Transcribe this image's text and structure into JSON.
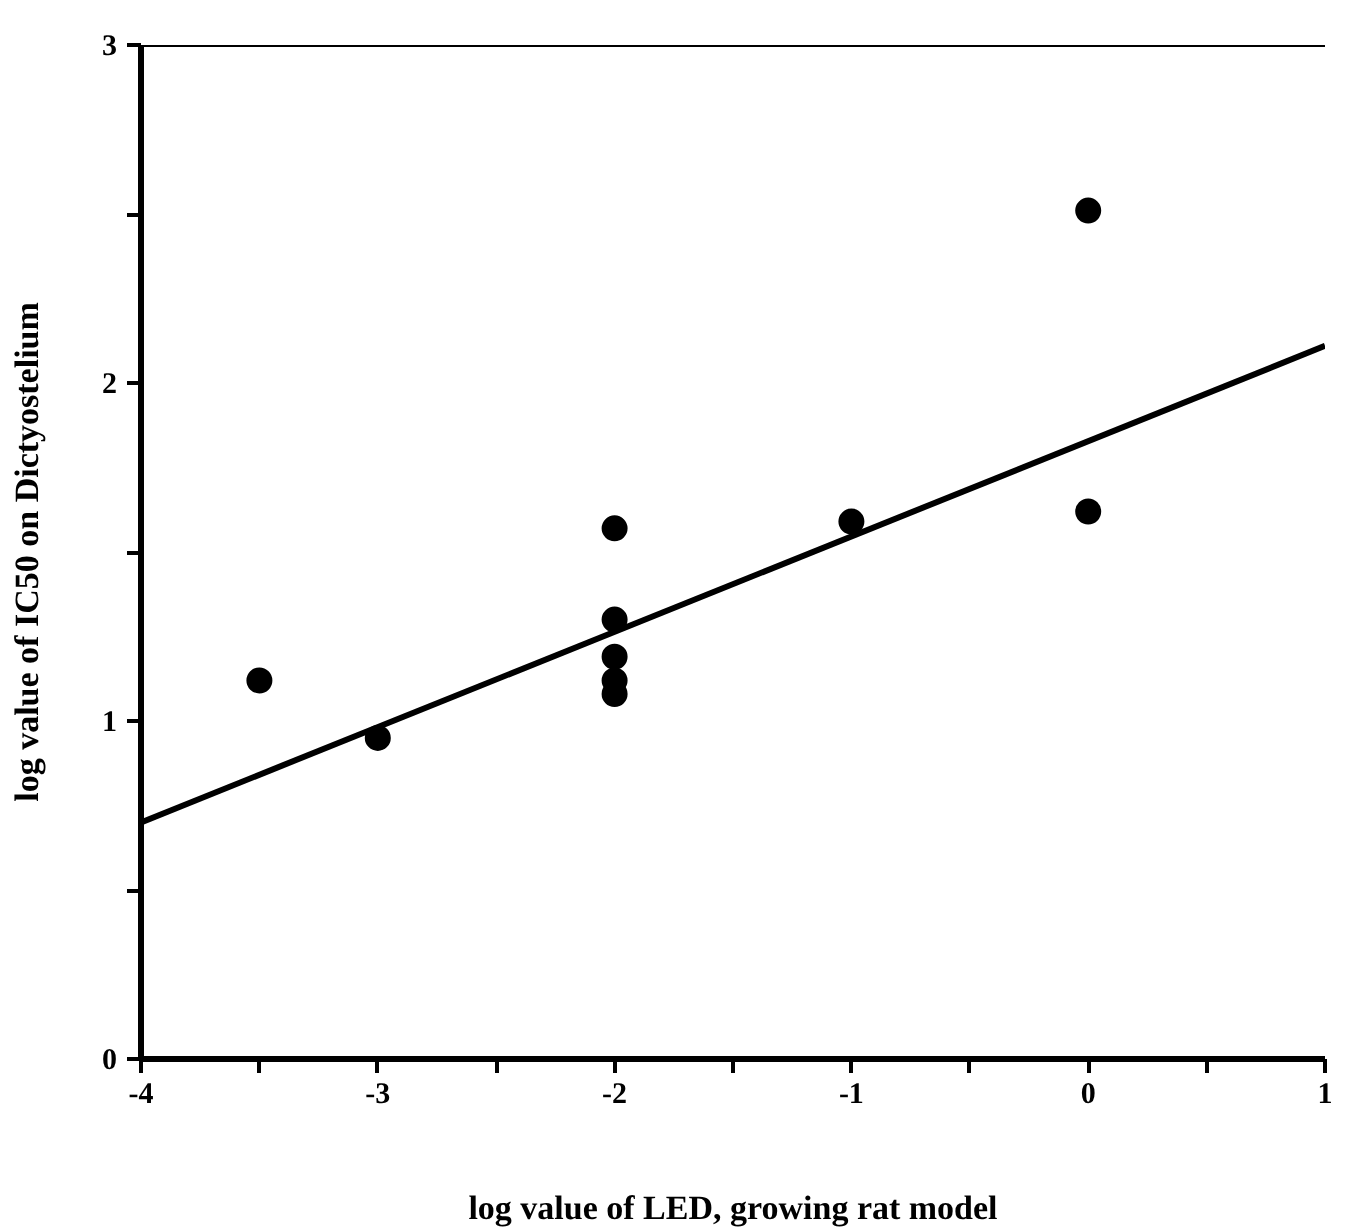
{
  "chart_data": {
    "type": "scatter",
    "xlabel": "log value of LED, growing rat model",
    "ylabel": "log value of IC50 on Dictyostelium",
    "xlim": [
      -4,
      1
    ],
    "ylim": [
      0,
      3
    ],
    "xticks": [
      -4,
      {
        "value": -3.5,
        "label": null
      },
      -3,
      {
        "value": -2.5,
        "label": null
      },
      -2,
      {
        "value": -1.5,
        "label": null
      },
      -1,
      {
        "value": -0.5,
        "label": null
      },
      0,
      {
        "value": 0.5,
        "label": null
      },
      1
    ],
    "yticks": [
      0,
      {
        "value": 0.5,
        "label": null
      },
      1,
      {
        "value": 1.5,
        "label": null
      },
      2,
      {
        "value": 2.5,
        "label": null
      },
      3
    ],
    "grid": false,
    "marker": "circle",
    "series": [
      {
        "color": "#000000",
        "x": [
          -3.5,
          -3,
          -2,
          -2,
          -2,
          -2,
          -2,
          -1,
          0,
          0
        ],
        "values": [
          1.12,
          0.95,
          1.57,
          1.3,
          1.19,
          1.12,
          1.08,
          1.59,
          2.51,
          1.62
        ]
      },
      {
        "type": "line",
        "color": "#000000",
        "x": [
          -4,
          1
        ],
        "values": [
          0.7,
          2.11
        ],
        "marker": "none",
        "line_style": "solid"
      }
    ]
  }
}
